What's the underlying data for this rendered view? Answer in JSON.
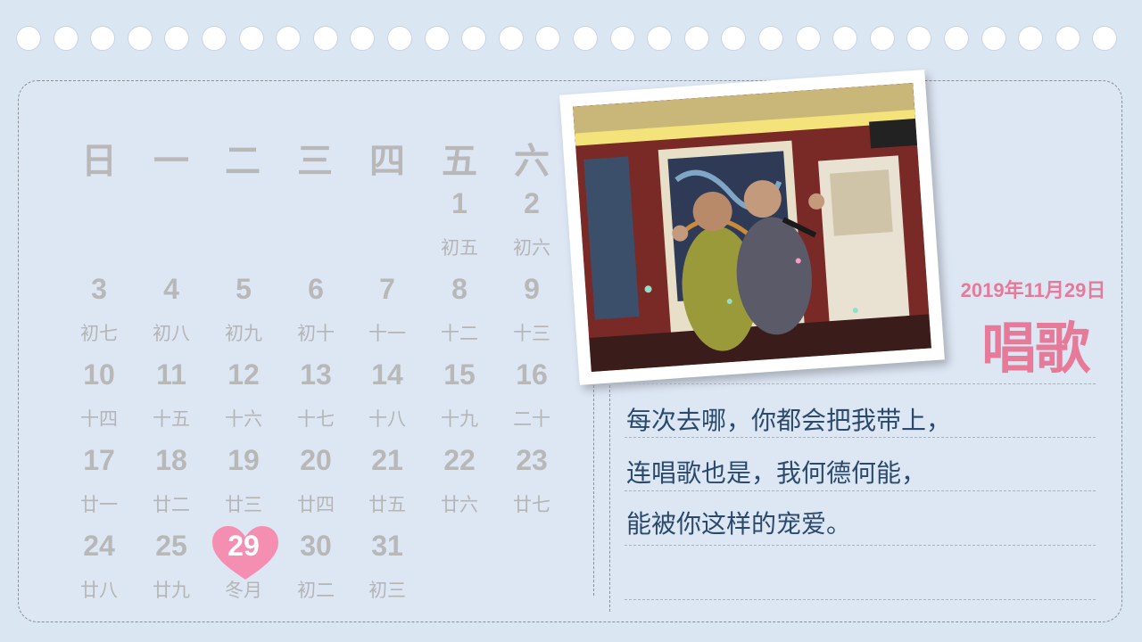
{
  "weekdays": [
    "日",
    "一",
    "二",
    "三",
    "四",
    "五",
    "六"
  ],
  "calendar": [
    {
      "num": "1",
      "lunar": "初五"
    },
    {
      "num": "2",
      "lunar": "初六"
    },
    {
      "num": "3",
      "lunar": "初七"
    },
    {
      "num": "4",
      "lunar": "初八"
    },
    {
      "num": "5",
      "lunar": "初九"
    },
    {
      "num": "6",
      "lunar": "初十"
    },
    {
      "num": "7",
      "lunar": "十一"
    },
    {
      "num": "8",
      "lunar": "十二"
    },
    {
      "num": "9",
      "lunar": "十三"
    },
    {
      "num": "10",
      "lunar": "十四"
    },
    {
      "num": "11",
      "lunar": "十五"
    },
    {
      "num": "12",
      "lunar": "十六"
    },
    {
      "num": "13",
      "lunar": "十七"
    },
    {
      "num": "14",
      "lunar": "十八"
    },
    {
      "num": "15",
      "lunar": "十九"
    },
    {
      "num": "16",
      "lunar": "二十"
    },
    {
      "num": "17",
      "lunar": "廿一"
    },
    {
      "num": "18",
      "lunar": "廿二"
    },
    {
      "num": "19",
      "lunar": "廿三"
    },
    {
      "num": "20",
      "lunar": "廿四"
    },
    {
      "num": "21",
      "lunar": "廿五"
    },
    {
      "num": "22",
      "lunar": "廿六"
    },
    {
      "num": "23",
      "lunar": "廿七"
    },
    {
      "num": "24",
      "lunar": "廿八"
    },
    {
      "num": "25",
      "lunar": "廿九"
    },
    {
      "num": "29",
      "lunar": "冬月"
    },
    {
      "num": "30",
      "lunar": "初二"
    },
    {
      "num": "31",
      "lunar": "初三"
    }
  ],
  "highlight_day": "29",
  "highlight_color": "#f48fb1",
  "accent_color": "#e77a98",
  "date_label": "2019年11月29日",
  "title": "唱歌",
  "text_lines": [
    "每次去哪，你都会把我带上，",
    "连唱歌也是，我何德何能，",
    "能被你这样的宠爱。"
  ],
  "icons": {
    "heart": "heart-icon"
  }
}
